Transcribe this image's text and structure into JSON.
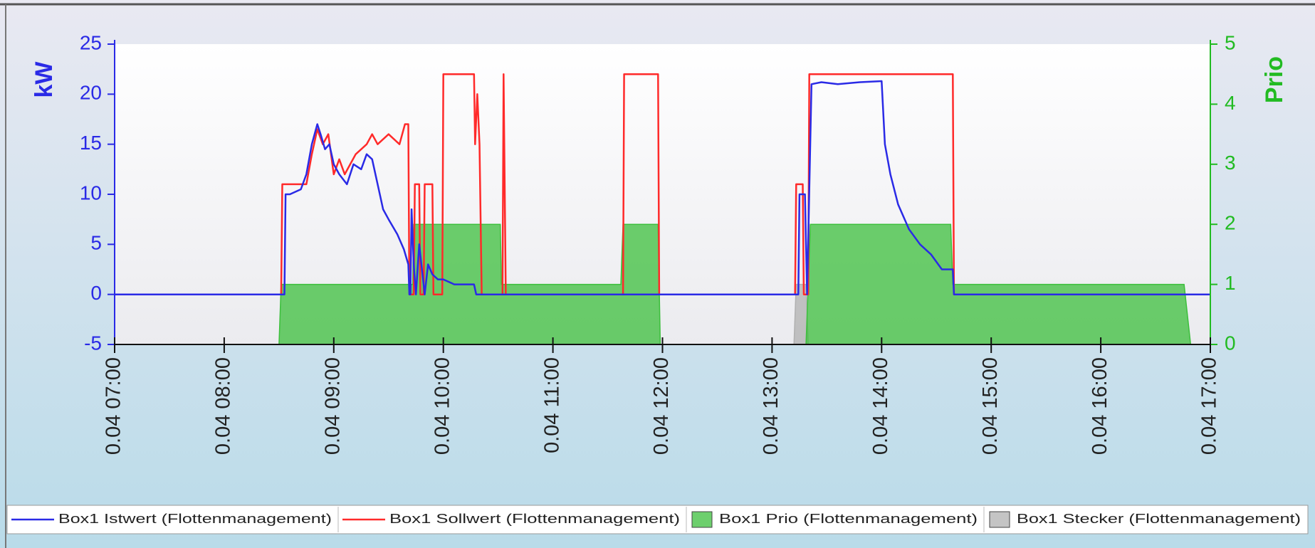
{
  "chart_data": {
    "type": "line",
    "ylabel": "kW",
    "y2label": "Prio",
    "ylim": [
      -5,
      25
    ],
    "yticks": [
      -5,
      0,
      5,
      10,
      15,
      20,
      25
    ],
    "y2lim": [
      0,
      5
    ],
    "y2ticks": [
      0,
      1,
      2,
      3,
      4,
      5
    ],
    "xlim": [
      7,
      17
    ],
    "xticks": [
      {
        "value": 7,
        "label": "0.04 07:00"
      },
      {
        "value": 8,
        "label": "0.04 08:00"
      },
      {
        "value": 9,
        "label": "0.04 09:00"
      },
      {
        "value": 10,
        "label": "0.04 10:00"
      },
      {
        "value": 11,
        "label": "0.04 11:00"
      },
      {
        "value": 12,
        "label": "0.04 12:00"
      },
      {
        "value": 13,
        "label": "0.04 13:00"
      },
      {
        "value": 14,
        "label": "0.04 14:00"
      },
      {
        "value": 15,
        "label": "0.04 15:00"
      },
      {
        "value": 16,
        "label": "0.04 16:00"
      },
      {
        "value": 17,
        "label": "0.04 17:00"
      }
    ],
    "legend": "bottom",
    "series": [
      {
        "name": "Box1 Stecker (Flottenmanagement)",
        "color": "#b0b0b0",
        "style": "area",
        "axis": "y2",
        "x": [
          7,
          13.2,
          13.22,
          13.31,
          13.33,
          17
        ],
        "values": [
          0,
          0,
          1,
          1,
          0,
          0
        ]
      },
      {
        "name": "Box1 Prio (Flottenmanagement)",
        "color": "#3cbf3c",
        "style": "area",
        "axis": "y2",
        "x": [
          7,
          8.5,
          8.52,
          9.72,
          9.73,
          10.52,
          10.53,
          11.62,
          11.64,
          11.96,
          11.98,
          13.31,
          13.33,
          13.35,
          14.63,
          14.65,
          16.76,
          16.82,
          17
        ],
        "values": [
          0,
          0,
          1,
          1,
          2,
          2,
          1,
          1,
          2,
          2,
          0,
          0,
          1,
          2,
          2,
          1,
          1,
          0,
          0
        ]
      },
      {
        "name": "Box1 Sollwert (Flottenmanagement)",
        "color": "#ff2a2a",
        "style": "line",
        "x": [
          7,
          8.52,
          8.53,
          8.75,
          8.8,
          8.85,
          8.9,
          8.95,
          9.0,
          9.05,
          9.1,
          9.2,
          9.3,
          9.35,
          9.4,
          9.5,
          9.6,
          9.65,
          9.68,
          9.69,
          9.73,
          9.74,
          9.78,
          9.79,
          9.82,
          9.83,
          9.9,
          9.91,
          9.99,
          10.0,
          10.28,
          10.29,
          10.31,
          10.33,
          10.35,
          10.54,
          10.55,
          10.57,
          11.64,
          11.65,
          11.96,
          11.97,
          13.21,
          13.22,
          13.28,
          13.29,
          13.33,
          13.34,
          14.65,
          14.66,
          17
        ],
        "values": [
          0,
          0,
          11,
          11,
          14,
          16.5,
          15,
          16,
          12,
          13.5,
          12,
          14,
          15,
          16,
          15,
          16,
          15,
          17,
          17,
          0,
          0,
          11,
          11,
          0,
          0,
          11,
          11,
          0,
          0,
          22,
          22,
          15,
          20,
          15,
          0,
          0,
          22,
          0,
          0,
          22,
          22,
          0,
          0,
          11,
          11,
          0,
          0,
          22,
          22,
          0,
          0
        ]
      },
      {
        "name": "Box1 Istwert (Flottenmanagement)",
        "color": "#2a2ae6",
        "style": "line",
        "x": [
          7,
          8.55,
          8.56,
          8.6,
          8.7,
          8.75,
          8.8,
          8.85,
          8.88,
          8.92,
          8.96,
          9.0,
          9.05,
          9.12,
          9.18,
          9.25,
          9.3,
          9.35,
          9.4,
          9.45,
          9.5,
          9.58,
          9.64,
          9.68,
          9.69,
          9.7,
          9.71,
          9.73,
          9.75,
          9.78,
          9.8,
          9.83,
          9.86,
          9.9,
          9.95,
          10.0,
          10.1,
          10.28,
          10.3,
          13.24,
          13.25,
          13.3,
          13.32,
          13.36,
          13.45,
          13.6,
          13.8,
          14.0,
          14.03,
          14.08,
          14.15,
          14.25,
          14.35,
          14.45,
          14.55,
          14.65,
          14.66,
          17
        ],
        "values": [
          0,
          0,
          10,
          10,
          10.5,
          12,
          15,
          17,
          16,
          14.5,
          15,
          13,
          12,
          11,
          13,
          12.5,
          14,
          13.5,
          11,
          8.5,
          7.5,
          6,
          4.5,
          3,
          0,
          0,
          8.5,
          3,
          0,
          5,
          3,
          0,
          3,
          2,
          1.5,
          1.5,
          1,
          1,
          0,
          0,
          10,
          10,
          0,
          21,
          21.2,
          21,
          21.2,
          21.3,
          15,
          12,
          9,
          6.5,
          5,
          4,
          2.5,
          2.5,
          0,
          0
        ]
      }
    ]
  }
}
